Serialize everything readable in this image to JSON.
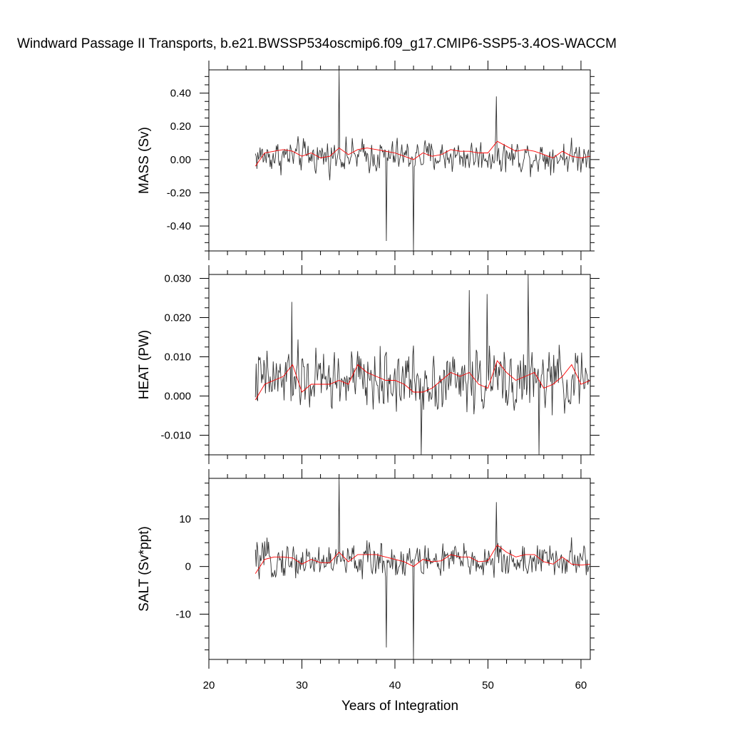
{
  "title": "Windward Passage II Transports, b.e21.BWSSP534oscmip6.f09_g17.CMIP6-SSP5-3.4OS-WACCM",
  "xlabel": "Years of Integration",
  "colors": {
    "raw": "#333333",
    "smooth": "#ff0000",
    "axis": "#000000"
  },
  "chart_data": [
    {
      "type": "line",
      "ylabel": "MASS (Sv)",
      "xlim": [
        20,
        61
      ],
      "ylim": [
        -0.55,
        0.54
      ],
      "x_ticks": [
        20,
        30,
        40,
        50,
        60
      ],
      "y_ticks": [
        -0.4,
        -0.2,
        0.0,
        0.2,
        0.4
      ],
      "y_tick_labels": [
        "-0.40",
        "-0.20",
        "0.00",
        "0.20",
        "0.40"
      ],
      "raw": {
        "x_start": 25.0,
        "x_step": 0.0833,
        "n": 432,
        "mean": 0.02,
        "amplitude": 0.08,
        "spikes": [
          [
            34.0,
            0.54
          ],
          [
            39.1,
            -0.49
          ],
          [
            42.0,
            -0.55
          ],
          [
            50.9,
            0.38
          ]
        ]
      },
      "smooth": {
        "x": [
          25.0,
          26.0,
          27.0,
          28.0,
          29.0,
          30.0,
          31.0,
          32.0,
          33.0,
          34.0,
          35.0,
          36.0,
          37.0,
          38.0,
          39.0,
          40.0,
          41.0,
          42.0,
          43.0,
          44.0,
          45.0,
          46.0,
          47.0,
          48.0,
          49.0,
          50.0,
          51.0,
          52.0,
          53.0,
          54.0,
          55.0,
          56.0,
          57.0,
          58.0,
          59.0,
          60.0,
          61.0
        ],
        "y": [
          -0.04,
          0.04,
          0.05,
          0.06,
          0.05,
          0.02,
          0.04,
          0.01,
          0.02,
          0.07,
          0.03,
          0.06,
          0.07,
          0.06,
          0.05,
          0.04,
          0.02,
          0.0,
          0.04,
          0.02,
          0.03,
          0.06,
          0.05,
          0.05,
          0.04,
          0.04,
          0.11,
          0.08,
          0.05,
          0.06,
          0.05,
          0.03,
          0.01,
          0.05,
          0.02,
          0.01,
          0.02
        ]
      }
    },
    {
      "type": "line",
      "ylabel": "HEAT (PW)",
      "xlim": [
        20,
        61
      ],
      "ylim": [
        -0.015,
        0.031
      ],
      "x_ticks": [
        20,
        30,
        40,
        50,
        60
      ],
      "y_ticks": [
        -0.01,
        0.0,
        0.01,
        0.02,
        0.03
      ],
      "y_tick_labels": [
        "-0.010",
        "0.000",
        "0.010",
        "0.020",
        "0.030"
      ],
      "raw": {
        "x_start": 25.0,
        "x_step": 0.0833,
        "n": 432,
        "mean": 0.004,
        "amplitude": 0.0065,
        "spikes": [
          [
            28.9,
            0.024
          ],
          [
            42.8,
            -0.015
          ],
          [
            48.0,
            0.027
          ],
          [
            49.9,
            0.026
          ],
          [
            54.3,
            0.031
          ],
          [
            55.5,
            -0.015
          ]
        ]
      },
      "smooth": {
        "x": [
          25.0,
          26.0,
          27.0,
          28.0,
          29.0,
          30.0,
          31.0,
          32.0,
          33.0,
          34.0,
          35.0,
          36.0,
          37.0,
          38.0,
          39.0,
          40.0,
          41.0,
          42.0,
          43.0,
          44.0,
          45.0,
          46.0,
          47.0,
          48.0,
          49.0,
          50.0,
          51.0,
          52.0,
          53.0,
          54.0,
          55.0,
          56.0,
          57.0,
          58.0,
          59.0,
          60.0,
          61.0
        ],
        "y": [
          -0.001,
          0.003,
          0.004,
          0.005,
          0.008,
          0.001,
          0.003,
          0.003,
          0.003,
          0.004,
          0.003,
          0.008,
          0.006,
          0.005,
          0.004,
          0.004,
          0.003,
          0.001,
          0.001,
          0.002,
          0.004,
          0.006,
          0.005,
          0.006,
          0.003,
          0.002,
          0.009,
          0.006,
          0.004,
          0.005,
          0.006,
          0.002,
          0.003,
          0.005,
          0.008,
          0.003,
          0.004
        ]
      }
    },
    {
      "type": "line",
      "ylabel": "SALT (Sv*ppt)",
      "xlim": [
        20,
        61
      ],
      "ylim": [
        -19.5,
        18.5
      ],
      "x_ticks": [
        20,
        30,
        40,
        50,
        60
      ],
      "y_ticks": [
        -10,
        0,
        10
      ],
      "y_tick_labels": [
        "-10",
        "0",
        "10"
      ],
      "raw": {
        "x_start": 25.0,
        "x_step": 0.0833,
        "n": 432,
        "mean": 1.2,
        "amplitude": 3.0,
        "spikes": [
          [
            34.0,
            18.5
          ],
          [
            39.1,
            -17.0
          ],
          [
            42.0,
            -19.5
          ],
          [
            50.9,
            13.5
          ]
        ]
      },
      "smooth": {
        "x": [
          25.0,
          26.0,
          27.0,
          28.0,
          29.0,
          30.0,
          31.0,
          32.0,
          33.0,
          34.0,
          35.0,
          36.0,
          37.0,
          38.0,
          39.0,
          40.0,
          41.0,
          42.0,
          43.0,
          44.0,
          45.0,
          46.0,
          47.0,
          48.0,
          49.0,
          50.0,
          51.0,
          52.0,
          53.0,
          54.0,
          55.0,
          56.0,
          57.0,
          58.0,
          59.0,
          60.0,
          61.0
        ],
        "y": [
          -1.5,
          1.5,
          2.0,
          2.0,
          1.8,
          0.5,
          1.5,
          0.8,
          0.8,
          3.0,
          1.0,
          2.5,
          2.5,
          2.5,
          2.0,
          1.5,
          1.0,
          0.0,
          1.5,
          1.0,
          1.2,
          2.5,
          2.0,
          2.0,
          1.0,
          1.2,
          4.5,
          3.0,
          2.0,
          2.5,
          2.5,
          1.0,
          0.5,
          2.0,
          0.5,
          0.3,
          0.5
        ]
      }
    }
  ]
}
